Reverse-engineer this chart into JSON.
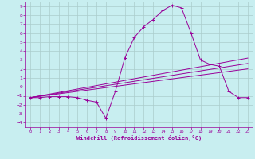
{
  "xlabel": "Windchill (Refroidissement éolien,°C)",
  "background_color": "#c8eef0",
  "grid_color": "#aacccc",
  "line_color": "#990099",
  "xlim": [
    -0.5,
    23.5
  ],
  "ylim": [
    -4.5,
    9.5
  ],
  "xticks": [
    0,
    1,
    2,
    3,
    4,
    5,
    6,
    7,
    8,
    9,
    10,
    11,
    12,
    13,
    14,
    15,
    16,
    17,
    18,
    19,
    20,
    21,
    22,
    23
  ],
  "yticks": [
    -4,
    -3,
    -2,
    -1,
    0,
    1,
    2,
    3,
    4,
    5,
    6,
    7,
    8,
    9
  ],
  "main_x": [
    0,
    1,
    2,
    3,
    4,
    5,
    6,
    7,
    8,
    9,
    10,
    11,
    12,
    13,
    14,
    15,
    16,
    17,
    18,
    19,
    20,
    21,
    22,
    23
  ],
  "main_y": [
    -1.2,
    -1.2,
    -1.1,
    -1.1,
    -1.1,
    -1.2,
    -1.5,
    -1.7,
    -3.5,
    -0.5,
    3.2,
    5.5,
    6.7,
    7.5,
    8.5,
    9.1,
    8.8,
    6.0,
    3.0,
    2.5,
    2.3,
    -0.5,
    -1.2,
    -1.2
  ],
  "line1_x": [
    0,
    23
  ],
  "line1_y": [
    -1.2,
    3.2
  ],
  "line2_x": [
    0,
    23
  ],
  "line2_y": [
    -1.2,
    2.6
  ],
  "line3_x": [
    0,
    23
  ],
  "line3_y": [
    -1.2,
    2.0
  ]
}
